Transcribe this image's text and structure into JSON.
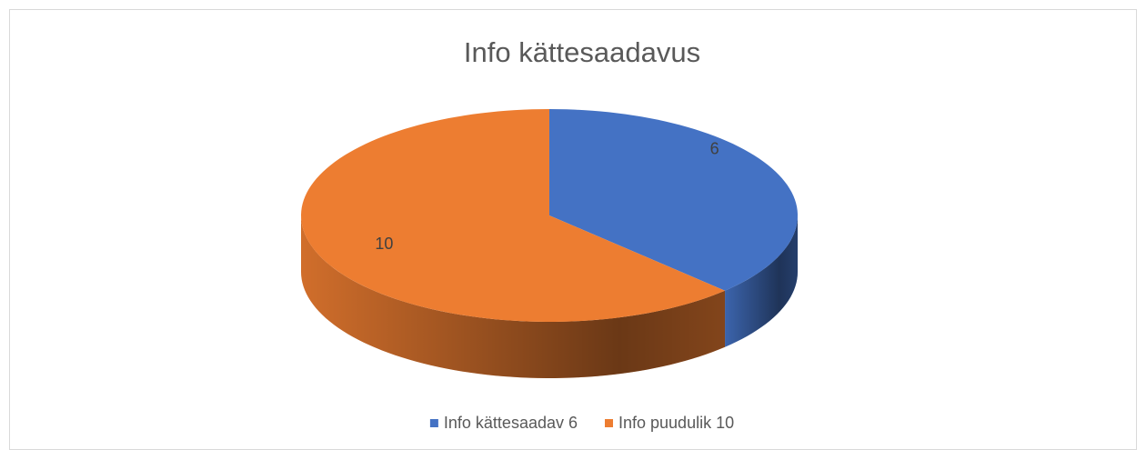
{
  "chart_data": {
    "type": "pie",
    "title": "Info kättesaadavus",
    "categories": [
      "Info kättesaadav 6",
      "Info puudulik 10"
    ],
    "values": [
      6,
      10
    ],
    "colors": [
      "#4472c4",
      "#ed7d31"
    ],
    "legend": "bottom"
  }
}
